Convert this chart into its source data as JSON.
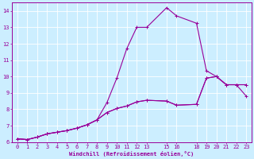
{
  "xlabel": "Windchill (Refroidissement éolien,°C)",
  "background_color": "#cceeff",
  "grid_color": "#ffffff",
  "line_color": "#990099",
  "xlim": [
    -0.5,
    23.5
  ],
  "ylim": [
    6,
    14.5
  ],
  "xtick_positions": [
    0,
    1,
    2,
    3,
    4,
    5,
    6,
    7,
    8,
    9,
    10,
    11,
    12,
    13,
    15,
    16,
    18,
    19,
    20,
    21,
    22,
    23
  ],
  "xtick_labels": [
    "0",
    "1",
    "2",
    "3",
    "4",
    "5",
    "6",
    "7",
    "8",
    "9",
    "10",
    "11",
    "12",
    "13",
    "15",
    "16",
    "18",
    "19",
    "20",
    "21",
    "22",
    "23"
  ],
  "ytick_positions": [
    6,
    7,
    8,
    9,
    10,
    11,
    12,
    13,
    14
  ],
  "ytick_labels": [
    "6",
    "7",
    "8",
    "9",
    "10",
    "11",
    "12",
    "13",
    "14"
  ],
  "line1_x": [
    0,
    1,
    2,
    3,
    4,
    5,
    6,
    7,
    8,
    9,
    10,
    11,
    12,
    13,
    15,
    16,
    18,
    19,
    20,
    21,
    22,
    23
  ],
  "line1_y": [
    6.2,
    6.15,
    6.3,
    6.5,
    6.6,
    6.7,
    6.85,
    7.05,
    7.35,
    8.4,
    9.9,
    11.7,
    13.0,
    13.0,
    14.2,
    13.7,
    13.25,
    10.35,
    10.0,
    9.5,
    9.5,
    9.5
  ],
  "line2_x": [
    0,
    1,
    2,
    3,
    4,
    5,
    6,
    7,
    8,
    9,
    10,
    11,
    12,
    13,
    15,
    16,
    18,
    19,
    20,
    21,
    22,
    23
  ],
  "line2_y": [
    6.2,
    6.15,
    6.3,
    6.5,
    6.6,
    6.7,
    6.85,
    7.05,
    7.35,
    7.8,
    8.05,
    8.2,
    8.45,
    8.55,
    8.5,
    8.25,
    8.3,
    9.9,
    10.0,
    9.5,
    9.5,
    9.5
  ],
  "line3_x": [
    0,
    1,
    2,
    3,
    4,
    5,
    6,
    7,
    8,
    9,
    10,
    11,
    12,
    13,
    15,
    16,
    18,
    19,
    20,
    21,
    22,
    23
  ],
  "line3_y": [
    6.2,
    6.15,
    6.3,
    6.5,
    6.6,
    6.7,
    6.85,
    7.05,
    7.35,
    7.8,
    8.05,
    8.2,
    8.45,
    8.55,
    8.5,
    8.25,
    8.3,
    9.9,
    10.0,
    9.5,
    9.5,
    8.8
  ],
  "tick_fontsize": 5,
  "xlabel_fontsize": 5,
  "linewidth": 0.8,
  "markersize": 3
}
